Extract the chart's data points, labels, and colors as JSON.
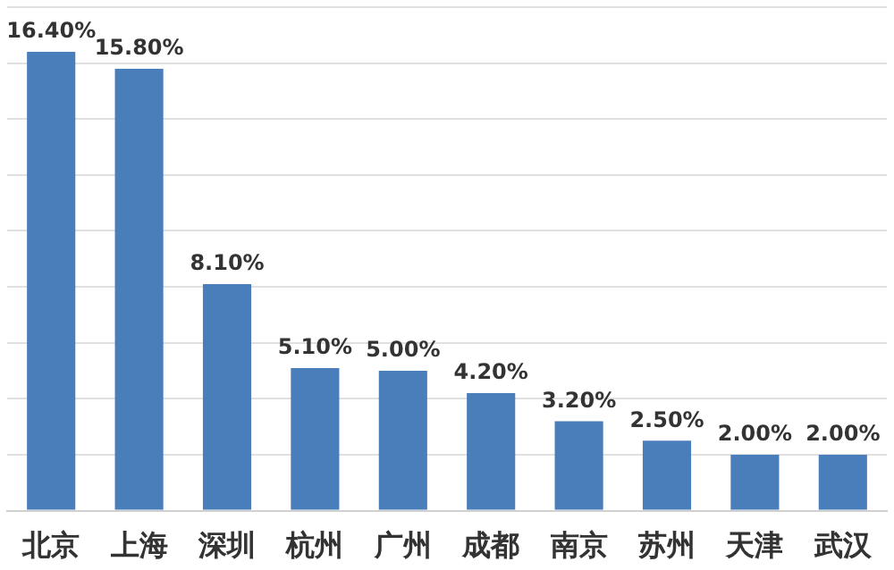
{
  "chart_data": {
    "type": "bar",
    "categories": [
      "北京",
      "上海",
      "深圳",
      "杭州",
      "广州",
      "成都",
      "南京",
      "苏州",
      "天津",
      "武汉"
    ],
    "values": [
      16.4,
      15.8,
      8.1,
      5.1,
      5.0,
      4.2,
      3.2,
      2.5,
      2.0,
      2.0
    ],
    "value_labels": [
      "16.40%",
      "15.80%",
      "8.10%",
      "5.10%",
      "5.00%",
      "4.20%",
      "3.20%",
      "2.50%",
      "2.00%",
      "2.00%"
    ],
    "color": "#4a7ebb",
    "ylim": [
      0,
      18
    ],
    "yticks": [
      {
        "value": 0,
        "label": null
      },
      {
        "value": 2,
        "label": null
      },
      {
        "value": 4,
        "label": null
      },
      {
        "value": 6,
        "label": null
      },
      {
        "value": 8,
        "label": null
      },
      {
        "value": 10,
        "label": null
      },
      {
        "value": 12,
        "label": null
      },
      {
        "value": 14,
        "label": null
      },
      {
        "value": 16,
        "label": null
      },
      {
        "value": 18,
        "label": null
      }
    ],
    "grid": "y",
    "tick_labels": "x",
    "legend": false
  }
}
